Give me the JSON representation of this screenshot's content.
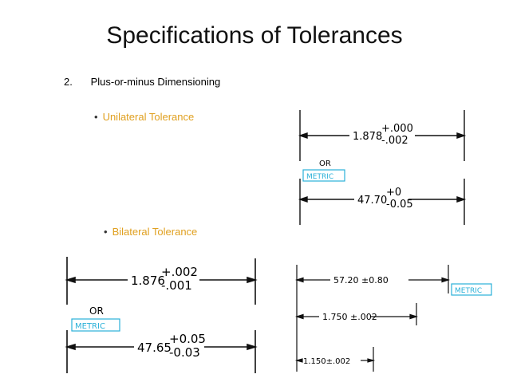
{
  "slide": {
    "title": "Specifications of Tolerances",
    "item_number": "2.",
    "item_text": "Plus-or-minus Dimensioning",
    "bullet_1": "Unilateral Tolerance",
    "bullet_2": "Bilateral Tolerance"
  },
  "colors": {
    "bullet_text": "#e0a020",
    "metric_box": "#2ab0d8"
  },
  "unilateral_drawing": {
    "inch_value": "1.878",
    "inch_upper": "+.000",
    "inch_lower": "-.002",
    "or_label": "OR",
    "metric_label": "METRIC",
    "metric_value": "47.70",
    "metric_upper": "+0",
    "metric_lower": "-0.05"
  },
  "bilateral_drawing_left": {
    "inch_value": "1.876",
    "inch_upper": "+.002",
    "inch_lower": "-.001",
    "or_label": "OR",
    "metric_label": "METRIC",
    "metric_value": "47.65",
    "metric_upper": "+0.05",
    "metric_lower": "-0.03"
  },
  "bilateral_drawing_right": {
    "metric_dim": "57.20 ±0.80",
    "metric_label": "METRIC",
    "dim_2": "1.750 ±.002",
    "dim_3": "1.150±.002"
  }
}
